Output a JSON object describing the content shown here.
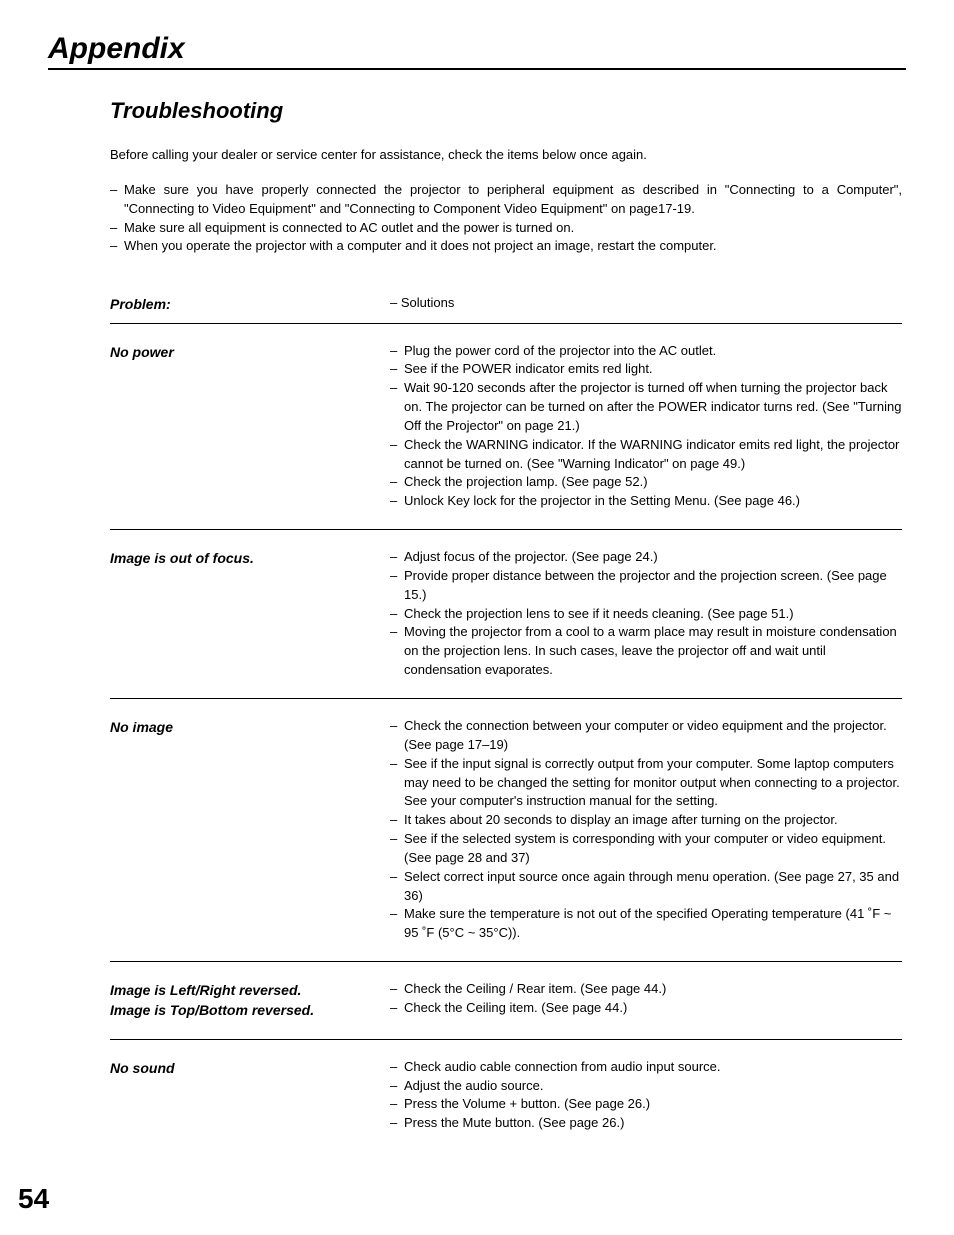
{
  "chapter": "Appendix",
  "section_title": "Troubleshooting",
  "intro": "Before calling your dealer or service center for assistance, check the items below once again.",
  "notes": [
    "Make sure you have properly connected the projector to peripheral equipment as described in \"Connecting to a Computer\", \"Connecting to Video Equipment\" and \"Connecting to Component Video Equipment\" on page17-19.",
    "Make sure all equipment is connected to AC outlet and the power is turned on.",
    "When you operate the projector with a computer and it does not project an image, restart the computer."
  ],
  "table": {
    "header": {
      "problem": "Problem:",
      "solution_prefix": "– Solutions"
    },
    "rows": [
      {
        "problem": "No power",
        "solutions": [
          "Plug the power cord of the projector into the AC outlet.",
          "See if the POWER indicator emits red light.",
          "Wait 90-120 seconds after the projector is turned off when turning the projector back on.  The projector can be turned on after the POWER indicator turns red.  (See \"Turning Off the Projector\" on page 21.)",
          "Check the WARNING indicator.  If the WARNING indicator emits red light, the projector cannot be turned on.  (See \"Warning Indicator\" on page 49.)",
          "Check the projection lamp.  (See page 52.)",
          "Unlock Key lock for the projector in the Setting Menu.  (See page 46.)"
        ]
      },
      {
        "problem": "Image is out of focus.",
        "solutions": [
          "Adjust focus of the projector.  (See page 24.)",
          "Provide proper distance between the projector and the projection screen.  (See page 15.)",
          "Check the projection lens to see if it needs cleaning.  (See page 51.)",
          "Moving the projector from a cool to a warm place may result in moisture condensation on the projection lens.  In such cases, leave the projector off and wait until condensation evaporates."
        ]
      },
      {
        "problem": "No image",
        "solutions": [
          "Check the connection between your computer or video equipment and the projector.  (See page 17–19)",
          "See if the input signal is correctly output from your computer.  Some laptop computers may need to be changed the setting for monitor output when connecting to a projector.  See your computer's instruction manual for the setting.",
          "It takes about 20 seconds to display an image after turning on the projector.",
          "See if the selected system is corresponding with your computer or video equipment.  (See page 28 and 37)",
          "Select correct input source once again through menu operation. (See page 27, 35 and 36)",
          "Make sure the temperature is not out of the specified Operating temperature (41 ˚F ~ 95 ˚F (5°C ~ 35°C))."
        ]
      },
      {
        "problem": "Image is Left/Right reversed.\nImage is Top/Bottom reversed.",
        "solutions": [
          "Check the Ceiling / Rear item.  (See page 44.)",
          "Check the Ceiling item.  (See page 44.)"
        ]
      },
      {
        "problem": "No sound",
        "solutions": [
          " Check audio cable connection from audio input source.",
          " Adjust the audio source.",
          " Press the Volume + button.  (See page 26.)",
          " Press the Mute button.  (See page 26.)"
        ]
      }
    ]
  },
  "page_number": "54"
}
